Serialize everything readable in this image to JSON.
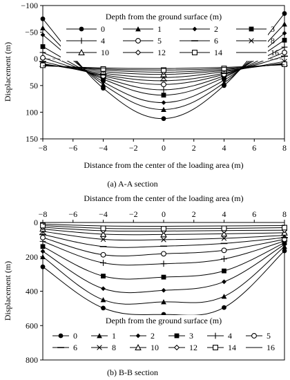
{
  "figure": {
    "panel_a_caption": "(a) A-A section",
    "panel_b_caption": "(b) B-B section"
  },
  "chart_data": [
    {
      "type": "line",
      "panel": "a",
      "xlabel": "Distance from the center of the loading area (m)",
      "ylabel": "Displacement (m)",
      "xlim": [
        -8,
        8
      ],
      "ylim": [
        150,
        -100
      ],
      "y_inverted": true,
      "xticks": [
        "−8",
        "−6",
        "−4",
        "−2",
        "0",
        "2",
        "4",
        "6",
        "8"
      ],
      "yticks": [
        "−100",
        "−50",
        "0",
        "50",
        "100",
        "150"
      ],
      "xtick_values": [
        -8,
        -6,
        -4,
        -2,
        0,
        2,
        4,
        6,
        8
      ],
      "ytick_values": [
        -100,
        -50,
        0,
        50,
        100,
        150
      ],
      "x": [
        -8,
        -4,
        0,
        4,
        8
      ],
      "reference_line": {
        "y": 0,
        "style": "dashed"
      },
      "legend": {
        "title": "Depth from the ground surface (m)",
        "placement": "top inside",
        "columns": 4
      },
      "series": [
        {
          "name": "0",
          "marker": "filled-circle",
          "values": [
            -75,
            55,
            112,
            50,
            -85
          ]
        },
        {
          "name": "1",
          "marker": "filled-triangle",
          "values": [
            -58,
            48,
            95,
            45,
            -65
          ]
        },
        {
          "name": "2",
          "marker": "filled-diamond",
          "values": [
            -45,
            43,
            82,
            40,
            -48
          ]
        },
        {
          "name": "3",
          "marker": "filled-square",
          "values": [
            -23,
            38,
            68,
            35,
            -35
          ]
        },
        {
          "name": "4",
          "marker": "plus",
          "values": [
            -12,
            35,
            58,
            32,
            -22
          ]
        },
        {
          "name": "5",
          "marker": "open-circle",
          "values": [
            -2,
            32,
            48,
            29,
            -12
          ]
        },
        {
          "name": "6",
          "marker": "dash",
          "values": [
            5,
            30,
            41,
            27,
            -5
          ]
        },
        {
          "name": "8",
          "marker": "x",
          "values": [
            9,
            27,
            35,
            24,
            5
          ]
        },
        {
          "name": "10",
          "marker": "open-triangle",
          "values": [
            10,
            24,
            29,
            22,
            8
          ]
        },
        {
          "name": "12",
          "marker": "open-diamond",
          "values": [
            11,
            21,
            25,
            20,
            9
          ]
        },
        {
          "name": "14",
          "marker": "open-square",
          "values": [
            12,
            19,
            21,
            18,
            10
          ]
        },
        {
          "name": "16",
          "marker": "none",
          "values": [
            13,
            17,
            18,
            16,
            11
          ]
        }
      ]
    },
    {
      "type": "line",
      "panel": "b",
      "xlabel": "Distance from the center of the loading area (m)",
      "xlabel_position": "top",
      "ylabel": "Displacement (m)",
      "xlim": [
        -8,
        8
      ],
      "ylim": [
        800,
        0
      ],
      "y_inverted": true,
      "xticks": [
        "−8",
        "−6",
        "−4",
        "−2",
        "0",
        "2",
        "4",
        "6",
        "8"
      ],
      "yticks": [
        "0",
        "200",
        "400",
        "600",
        "800"
      ],
      "xtick_values": [
        -8,
        -6,
        -4,
        -2,
        0,
        2,
        4,
        6,
        8
      ],
      "ytick_values": [
        0,
        200,
        400,
        600,
        800
      ],
      "x": [
        -8,
        -4,
        0,
        4,
        8
      ],
      "legend": {
        "title": "Depth from the ground surface (m)",
        "placement": "bottom inside",
        "columns": 6
      },
      "series": [
        {
          "name": "0",
          "marker": "filled-circle",
          "values": [
            258,
            498,
            535,
            495,
            165
          ]
        },
        {
          "name": "1",
          "marker": "filled-triangle",
          "values": [
            200,
            450,
            462,
            430,
            140
          ]
        },
        {
          "name": "2",
          "marker": "filled-diamond",
          "values": [
            168,
            385,
            395,
            345,
            128
          ]
        },
        {
          "name": "3",
          "marker": "filled-square",
          "values": [
            140,
            312,
            318,
            282,
            118
          ]
        },
        {
          "name": "4",
          "marker": "plus",
          "values": [
            110,
            235,
            240,
            212,
            108
          ]
        },
        {
          "name": "5",
          "marker": "open-circle",
          "values": [
            88,
            188,
            182,
            162,
            98
          ]
        },
        {
          "name": "6",
          "marker": "dash",
          "values": [
            70,
            140,
            138,
            122,
            88
          ]
        },
        {
          "name": "8",
          "marker": "x",
          "values": [
            52,
            98,
            100,
            92,
            75
          ]
        },
        {
          "name": "10",
          "marker": "open-triangle",
          "values": [
            38,
            68,
            70,
            66,
            60
          ]
        },
        {
          "name": "12",
          "marker": "open-diamond",
          "values": [
            28,
            48,
            50,
            47,
            45
          ]
        },
        {
          "name": "14",
          "marker": "open-square",
          "values": [
            18,
            34,
            36,
            34,
            30
          ]
        },
        {
          "name": "16",
          "marker": "none",
          "values": [
            10,
            20,
            22,
            20,
            18
          ]
        }
      ]
    }
  ]
}
